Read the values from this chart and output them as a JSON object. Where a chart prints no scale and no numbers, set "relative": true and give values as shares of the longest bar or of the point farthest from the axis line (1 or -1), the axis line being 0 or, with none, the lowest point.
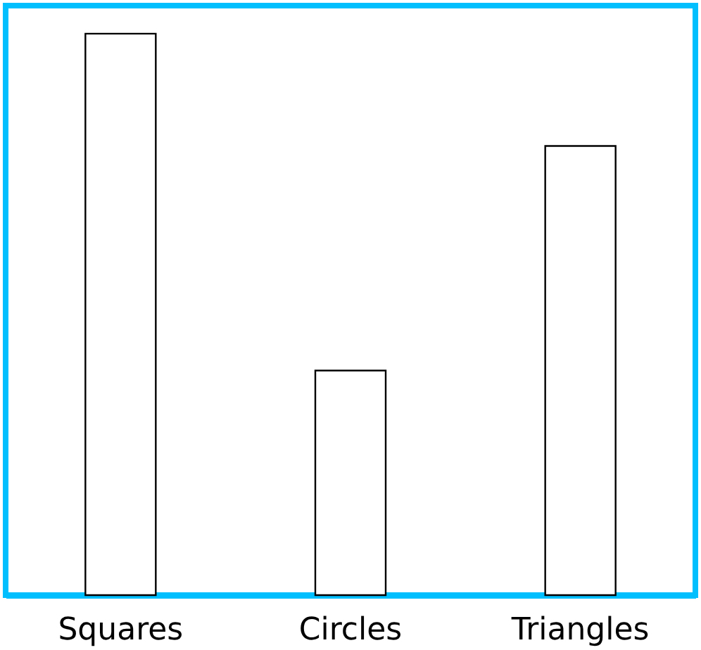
{
  "chart_data": {
    "type": "bar",
    "categories": [
      "Squares",
      "Circles",
      "Triangles"
    ],
    "values": [
      1,
      0.4,
      0.8
    ],
    "relative": true,
    "color": "#ffffff"
  }
}
